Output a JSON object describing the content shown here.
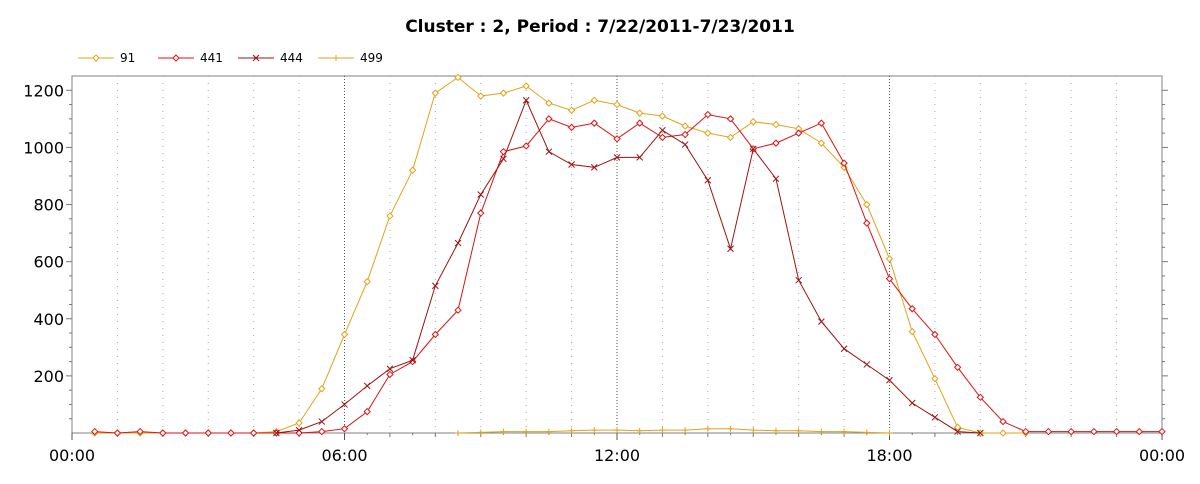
{
  "chart_data": {
    "type": "line",
    "title": "Cluster : 2, Period : 7/22/2011-7/23/2011",
    "xlabel": "",
    "ylabel": "",
    "xlim": [
      0,
      24
    ],
    "ylim": [
      0,
      1250
    ],
    "x_ticks": [
      {
        "value": 0,
        "label": "00:00"
      },
      {
        "value": 6,
        "label": "06:00"
      },
      {
        "value": 12,
        "label": "12:00"
      },
      {
        "value": 18,
        "label": "18:00"
      },
      {
        "value": 24,
        "label": "00:00"
      }
    ],
    "y_ticks": [
      200,
      400,
      600,
      800,
      1000,
      1200
    ],
    "grid": "dotted vertical at every hour, denser dotted at 6-hour marks",
    "legend_position": "top-left",
    "series": [
      {
        "name": "91",
        "color": "#e3a21a",
        "marker": "diamond",
        "points": [
          [
            0.5,
            0
          ],
          [
            1,
            0
          ],
          [
            1.5,
            0
          ],
          [
            2,
            0
          ],
          [
            2.5,
            0
          ],
          [
            3,
            0
          ],
          [
            3.5,
            0
          ],
          [
            4,
            0
          ],
          [
            4.5,
            5
          ],
          [
            5,
            35
          ],
          [
            5.5,
            155
          ],
          [
            6,
            345
          ],
          [
            6.5,
            530
          ],
          [
            7,
            760
          ],
          [
            7.5,
            920
          ],
          [
            8,
            1190
          ],
          [
            8.5,
            1245
          ],
          [
            9,
            1180
          ],
          [
            9.5,
            1190
          ],
          [
            10,
            1215
          ],
          [
            10.5,
            1155
          ],
          [
            11,
            1130
          ],
          [
            11.5,
            1165
          ],
          [
            12,
            1150
          ],
          [
            12.5,
            1120
          ],
          [
            13,
            1110
          ],
          [
            13.5,
            1075
          ],
          [
            14,
            1050
          ],
          [
            14.5,
            1035
          ],
          [
            15,
            1090
          ],
          [
            15.5,
            1080
          ],
          [
            16,
            1065
          ],
          [
            16.5,
            1015
          ],
          [
            17,
            930
          ],
          [
            17.5,
            800
          ],
          [
            18,
            610
          ],
          [
            18.5,
            355
          ],
          [
            19,
            190
          ],
          [
            19.5,
            20
          ],
          [
            20,
            0
          ],
          [
            20.5,
            0
          ],
          [
            21,
            0
          ]
        ]
      },
      {
        "name": "441",
        "color": "#dd1111",
        "marker": "diamond",
        "points": [
          [
            0.5,
            5
          ],
          [
            1,
            0
          ],
          [
            1.5,
            5
          ],
          [
            2,
            0
          ],
          [
            2.5,
            0
          ],
          [
            3,
            0
          ],
          [
            3.5,
            0
          ],
          [
            4,
            0
          ],
          [
            4.5,
            0
          ],
          [
            5,
            0
          ],
          [
            5.5,
            5
          ],
          [
            6,
            15
          ],
          [
            6.5,
            75
          ],
          [
            7,
            205
          ],
          [
            7.5,
            250
          ],
          [
            8,
            345
          ],
          [
            8.5,
            430
          ],
          [
            9,
            770
          ],
          [
            9.5,
            985
          ],
          [
            10,
            1005
          ],
          [
            10.5,
            1100
          ],
          [
            11,
            1070
          ],
          [
            11.5,
            1085
          ],
          [
            12,
            1030
          ],
          [
            12.5,
            1085
          ],
          [
            13,
            1035
          ],
          [
            13.5,
            1045
          ],
          [
            14,
            1115
          ],
          [
            14.5,
            1100
          ],
          [
            15,
            995
          ],
          [
            15.5,
            1015
          ],
          [
            16,
            1050
          ],
          [
            16.5,
            1085
          ],
          [
            17,
            945
          ],
          [
            17.5,
            735
          ],
          [
            18,
            540
          ],
          [
            18.5,
            435
          ],
          [
            19,
            345
          ],
          [
            19.5,
            230
          ],
          [
            20,
            125
          ],
          [
            20.5,
            40
          ],
          [
            21,
            5
          ],
          [
            21.5,
            5
          ],
          [
            22,
            5
          ],
          [
            22.5,
            5
          ],
          [
            23,
            5
          ],
          [
            23.5,
            5
          ],
          [
            24,
            5
          ]
        ]
      },
      {
        "name": "444",
        "color": "#9c1212",
        "marker": "x",
        "points": [
          [
            4.5,
            0
          ],
          [
            5,
            10
          ],
          [
            5.5,
            40
          ],
          [
            6,
            100
          ],
          [
            6.5,
            165
          ],
          [
            7,
            225
          ],
          [
            7.5,
            255
          ],
          [
            8,
            515
          ],
          [
            8.5,
            665
          ],
          [
            9,
            835
          ],
          [
            9.5,
            960
          ],
          [
            10,
            1165
          ],
          [
            10.5,
            985
          ],
          [
            11,
            940
          ],
          [
            11.5,
            930
          ],
          [
            12,
            965
          ],
          [
            12.5,
            965
          ],
          [
            13,
            1060
          ],
          [
            13.5,
            1010
          ],
          [
            14,
            885
          ],
          [
            14.5,
            645
          ],
          [
            15,
            995
          ],
          [
            15.5,
            890
          ],
          [
            16,
            535
          ],
          [
            16.5,
            390
          ],
          [
            17,
            295
          ],
          [
            17.5,
            240
          ],
          [
            18,
            185
          ],
          [
            18.5,
            105
          ],
          [
            19,
            55
          ],
          [
            19.5,
            5
          ],
          [
            20,
            0
          ]
        ]
      },
      {
        "name": "499",
        "color": "#e3a21a",
        "marker": "plus",
        "points": [
          [
            8.5,
            0
          ],
          [
            9,
            2
          ],
          [
            9.5,
            5
          ],
          [
            10,
            5
          ],
          [
            10.5,
            5
          ],
          [
            11,
            8
          ],
          [
            11.5,
            10
          ],
          [
            12,
            10
          ],
          [
            12.5,
            8
          ],
          [
            13,
            10
          ],
          [
            13.5,
            10
          ],
          [
            14,
            15
          ],
          [
            14.5,
            15
          ],
          [
            15,
            10
          ],
          [
            15.5,
            8
          ],
          [
            16,
            8
          ],
          [
            16.5,
            5
          ],
          [
            17,
            5
          ],
          [
            17.5,
            2
          ],
          [
            18,
            0
          ]
        ]
      }
    ]
  }
}
